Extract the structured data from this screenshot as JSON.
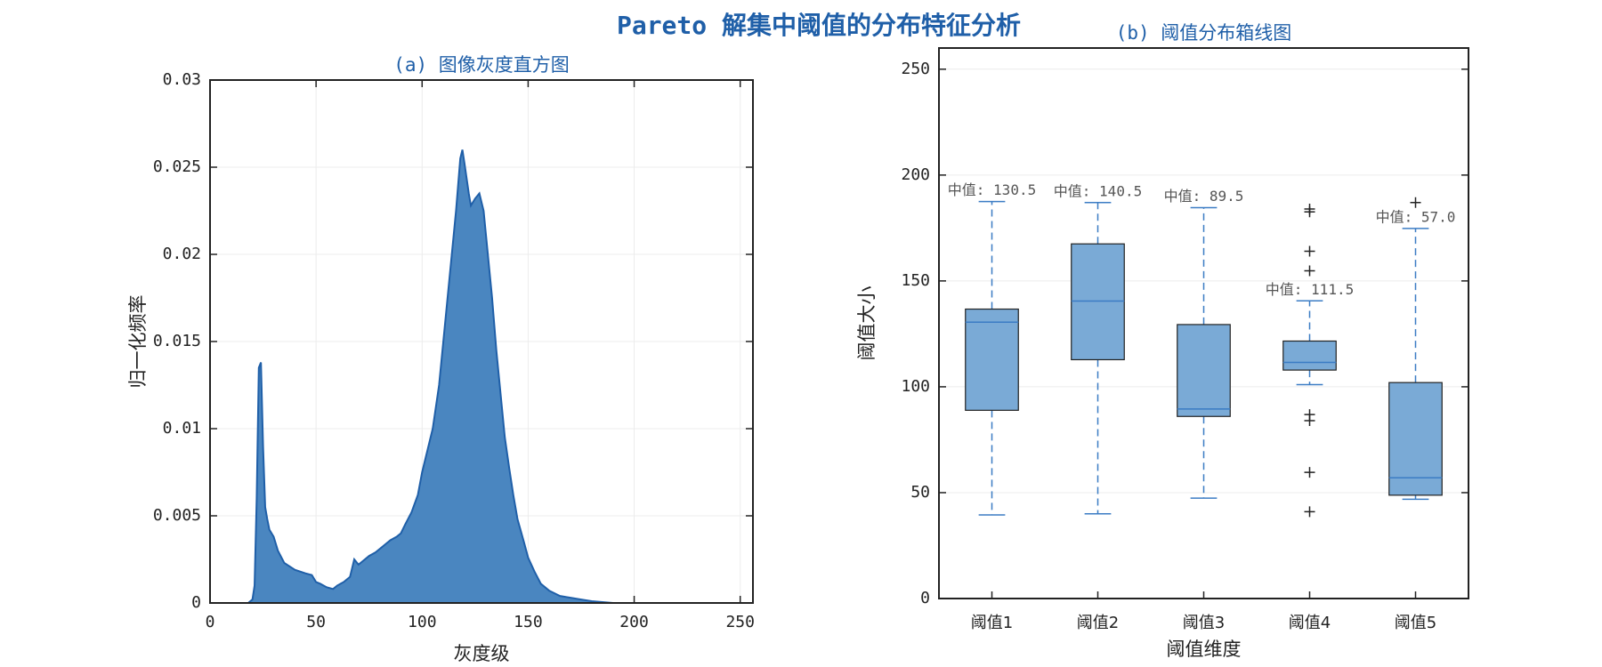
{
  "title": "Pareto 解集中阈值的分布特征分析",
  "chart_data": [
    {
      "type": "area",
      "title": "(a) 图像灰度直方图",
      "xlabel": "灰度级",
      "ylabel": "归一化频率",
      "color": "#4a86c0",
      "edge_color": "#1f5fa8",
      "x": [
        0,
        18,
        20,
        21,
        22,
        23,
        24,
        25,
        26,
        27,
        28,
        30,
        32,
        35,
        40,
        45,
        48,
        50,
        52,
        55,
        58,
        60,
        63,
        66,
        68,
        70,
        72,
        75,
        78,
        80,
        83,
        85,
        88,
        90,
        92,
        95,
        98,
        100,
        102,
        105,
        108,
        110,
        112,
        114,
        116,
        118,
        119,
        120,
        122,
        123,
        125,
        127,
        129,
        131,
        133,
        135,
        137,
        139,
        141,
        143,
        145,
        148,
        150,
        153,
        156,
        160,
        165,
        170,
        175,
        180,
        185,
        190,
        255
      ],
      "values": [
        0,
        0,
        0.0002,
        0.001,
        0.006,
        0.0135,
        0.0138,
        0.009,
        0.0055,
        0.0048,
        0.0042,
        0.0038,
        0.003,
        0.0023,
        0.0019,
        0.0017,
        0.0016,
        0.0012,
        0.0011,
        0.0009,
        0.0008,
        0.001,
        0.0012,
        0.0015,
        0.0025,
        0.0022,
        0.0024,
        0.0027,
        0.0029,
        0.0031,
        0.0034,
        0.0036,
        0.0038,
        0.004,
        0.0045,
        0.0052,
        0.0062,
        0.0075,
        0.0085,
        0.01,
        0.0125,
        0.015,
        0.0175,
        0.02,
        0.0225,
        0.0255,
        0.026,
        0.0252,
        0.0235,
        0.0228,
        0.0232,
        0.0235,
        0.0225,
        0.02,
        0.0175,
        0.0145,
        0.012,
        0.0095,
        0.0078,
        0.0062,
        0.0048,
        0.0035,
        0.0026,
        0.0018,
        0.0011,
        0.0007,
        0.0004,
        0.0003,
        0.0002,
        0.0001,
        5e-05,
        0,
        0
      ],
      "xlim": [
        0,
        256
      ],
      "xticks": [
        0,
        50,
        100,
        150,
        200,
        250
      ],
      "ylim": [
        0,
        0.03
      ],
      "yticks": [
        0,
        0.005,
        0.01,
        0.015,
        0.02,
        0.025,
        0.03
      ],
      "grid": true
    },
    {
      "type": "box",
      "title": "(b) 阈值分布箱线图",
      "xlabel": "阈值维度",
      "ylabel": "阈值大小",
      "color": "#7aaad6",
      "line_color": "#3b7cc4",
      "categories": [
        "阈值1",
        "阈值2",
        "阈值3",
        "阈值4",
        "阈值5"
      ],
      "whisker_low": [
        39.5,
        40,
        47.4,
        101,
        46.9
      ],
      "q1": [
        88.9,
        112.8,
        86,
        107.9,
        48.8
      ],
      "median": [
        130.5,
        140.5,
        89.5,
        111.5,
        57.0
      ],
      "median_labels": [
        "中值: 130.5",
        "中值: 140.5",
        "中值: 89.5",
        "中值: 111.5",
        "中值: 57.0"
      ],
      "q3": [
        136.7,
        167.5,
        129.4,
        121.6,
        102
      ],
      "whisker_high": [
        187.5,
        187,
        184.6,
        140.6,
        174.8
      ],
      "outliers": [
        [],
        [],
        [],
        [
          184,
          182.6,
          164,
          154.8,
          86.9,
          84,
          59.6,
          41
        ],
        [
          187
        ]
      ],
      "ylim": [
        0,
        260
      ],
      "yticks": [
        0,
        50,
        100,
        150,
        200,
        250
      ],
      "grid": true
    }
  ]
}
